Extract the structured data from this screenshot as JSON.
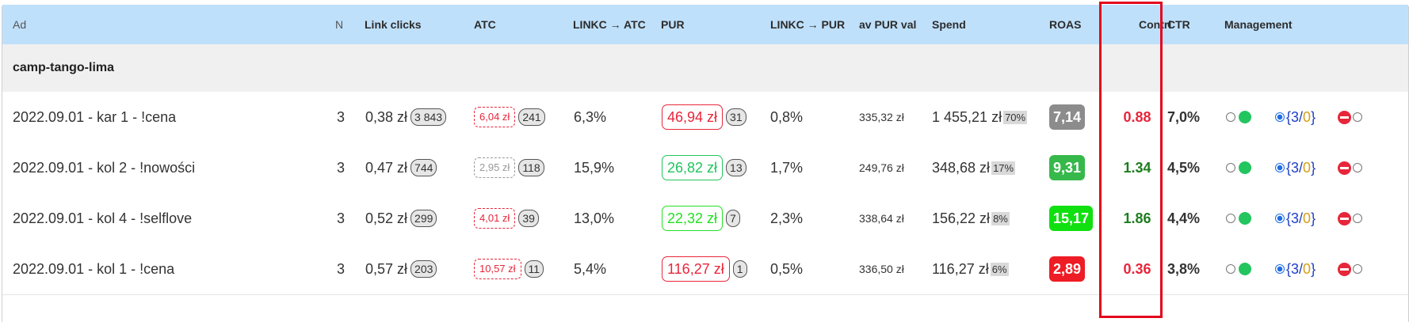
{
  "header": {
    "ad": "Ad",
    "n": "N",
    "link_clicks": "Link clicks",
    "atc": "ATC",
    "linkc_atc": "LINKC → ATC",
    "pur": "PUR",
    "linkc_pur": "LINKC → PUR",
    "av_pur_val": "av PUR val",
    "spend": "Spend",
    "roas": "ROAS",
    "contri": "Contri",
    "ctr": "CTR",
    "management": "Management"
  },
  "group": {
    "name": "camp-tango-lima"
  },
  "rows": [
    {
      "ad": "2022.09.01 - kar 1 - !cena",
      "n": "3",
      "link_cost": "0,38 zł",
      "link_count": "3 843",
      "atc_cost": "6,04 zł",
      "atc_count": "241",
      "atc_color": "#e8263a",
      "linkc_atc": "6,3%",
      "pur_cost": "46,94 zł",
      "pur_count": "31",
      "pur_color": "#e8263a",
      "linkc_pur": "0,8%",
      "av_pur_val": "335,32 zł",
      "spend": "1 455,21 zł",
      "spend_pct": "70%",
      "roas": "7,14",
      "roas_bg": "#8c8c8c",
      "contri": "0.88",
      "contri_color": "#e8263a",
      "ctr": "7,0%",
      "mgmt_num": "3",
      "mgmt_den": "0"
    },
    {
      "ad": "2022.09.01 - kol 2 - !nowości",
      "n": "3",
      "link_cost": "0,47 zł",
      "link_count": "744",
      "atc_cost": "2,95 zł",
      "atc_count": "118",
      "atc_color": "#999999",
      "linkc_atc": "15,9%",
      "pur_cost": "26,82 zł",
      "pur_count": "13",
      "pur_color": "#22c55e",
      "linkc_pur": "1,7%",
      "av_pur_val": "249,76 zł",
      "spend": "348,68 zł",
      "spend_pct": "17%",
      "roas": "9,31",
      "roas_bg": "#37b84a",
      "contri": "1.34",
      "contri_color": "#1e7d1e",
      "ctr": "4,5%",
      "mgmt_num": "3",
      "mgmt_den": "0"
    },
    {
      "ad": "2022.09.01 - kol 4 - !selflove",
      "n": "3",
      "link_cost": "0,52 zł",
      "link_count": "299",
      "atc_cost": "4,01 zł",
      "atc_count": "39",
      "atc_color": "#e8263a",
      "linkc_atc": "13,0%",
      "pur_cost": "22,32 zł",
      "pur_count": "7",
      "pur_color": "#22e022",
      "linkc_pur": "2,3%",
      "av_pur_val": "338,64 zł",
      "spend": "156,22 zł",
      "spend_pct": "8%",
      "roas": "15,17",
      "roas_bg": "#10e010",
      "contri": "1.86",
      "contri_color": "#1e7d1e",
      "ctr": "4,4%",
      "mgmt_num": "3",
      "mgmt_den": "0"
    },
    {
      "ad": "2022.09.01 - kol 1 - !cena",
      "n": "3",
      "link_cost": "0,57 zł",
      "link_count": "203",
      "atc_cost": "10,57 zł",
      "atc_count": "11",
      "atc_color": "#e8263a",
      "linkc_atc": "5,4%",
      "pur_cost": "116,27 zł",
      "pur_count": "1",
      "pur_color": "#e8263a",
      "linkc_pur": "0,5%",
      "av_pur_val": "336,50 zł",
      "spend": "116,27 zł",
      "spend_pct": "6%",
      "roas": "2,89",
      "roas_bg": "#ee1c24",
      "contri": "0.36",
      "contri_color": "#e8263a",
      "ctr": "3,8%",
      "mgmt_num": "3",
      "mgmt_den": "0"
    }
  ],
  "colors": {
    "header_bg": "#bfe0fb",
    "group_bg": "#f0f0f0",
    "highlight_border": "#e3061b",
    "status_dot": "#22c55e",
    "mgmt_slash_num": "#1e3ec8",
    "mgmt_den": "#d4a017"
  },
  "icons": {
    "radio": "radio-button",
    "status": "green-status-dot",
    "delete": "red-minus-circle-icon"
  }
}
